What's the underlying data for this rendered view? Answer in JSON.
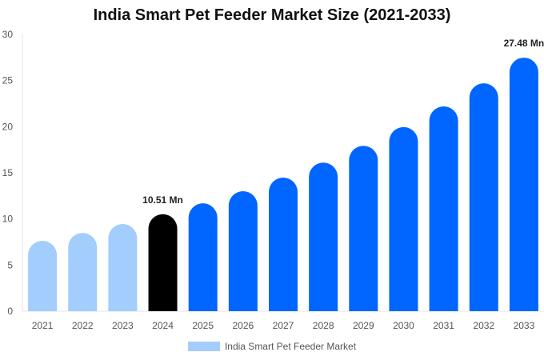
{
  "chart_data": {
    "type": "bar",
    "title": "India Smart Pet Feeder Market Size (2021-2033)",
    "categories": [
      "2021",
      "2022",
      "2023",
      "2024",
      "2025",
      "2026",
      "2027",
      "2028",
      "2029",
      "2030",
      "2031",
      "2032",
      "2033"
    ],
    "series": [
      {
        "name": "India Smart Pet Feeder Market",
        "values": [
          7.63,
          8.49,
          9.45,
          10.51,
          11.69,
          13.01,
          14.48,
          16.11,
          17.93,
          19.95,
          22.2,
          24.7,
          27.48
        ]
      }
    ],
    "data_labels": {
      "2024": "10.51 Mn",
      "2033": "27.48 Mn"
    },
    "ylim": [
      0,
      30
    ],
    "yticks": [
      0,
      5,
      10,
      15,
      20,
      25,
      30
    ],
    "grid": false,
    "legend": "bottom",
    "colors": {
      "historical": "#a3cdfd",
      "current": "#000000",
      "forecast": "#0066ff"
    },
    "color_groups": [
      "historical",
      "historical",
      "historical",
      "current",
      "forecast",
      "forecast",
      "forecast",
      "forecast",
      "forecast",
      "forecast",
      "forecast",
      "forecast",
      "forecast"
    ]
  }
}
